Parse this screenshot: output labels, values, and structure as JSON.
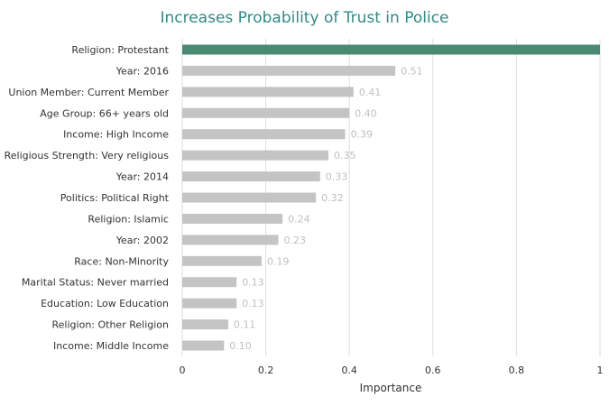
{
  "colors": {
    "title": "#2e8b86",
    "highlight_bar": "#4a8a73",
    "bar": "#c4c4c4",
    "value_label": "#c0c0c0",
    "grid": "#dedede",
    "text": "#333333"
  },
  "chart_data": {
    "type": "bar",
    "orientation": "horizontal",
    "title": "Increases Probability of Trust in Police",
    "xlabel": "Importance",
    "ylabel": "",
    "xlim": [
      0,
      1
    ],
    "x_ticks": [
      "0",
      "0.2",
      "0.4",
      "0.6",
      "0.8",
      "1"
    ],
    "grid": true,
    "categories": [
      "Religion: Protestant",
      "Year: 2016",
      "Union Member: Current Member",
      "Age Group: 66+ years old",
      "Income: High Income",
      "Religious Strength: Very religious",
      "Year: 2014",
      "Politics: Political Right",
      "Religion: Islamic",
      "Year: 2002",
      "Race: Non-Minority",
      "Marital Status: Never married",
      "Education: Low Education",
      "Religion: Other Religion",
      "Income: Middle Income"
    ],
    "values": [
      1.0,
      0.51,
      0.41,
      0.4,
      0.39,
      0.35,
      0.33,
      0.32,
      0.24,
      0.23,
      0.19,
      0.13,
      0.13,
      0.11,
      0.1
    ],
    "value_labels": [
      "",
      "0.51",
      "0.41",
      "0.40",
      "0.39",
      "0.35",
      "0.33",
      "0.32",
      "0.24",
      "0.23",
      "0.19",
      "0.13",
      "0.13",
      "0.11",
      "0.10"
    ],
    "highlight_index": 0
  }
}
